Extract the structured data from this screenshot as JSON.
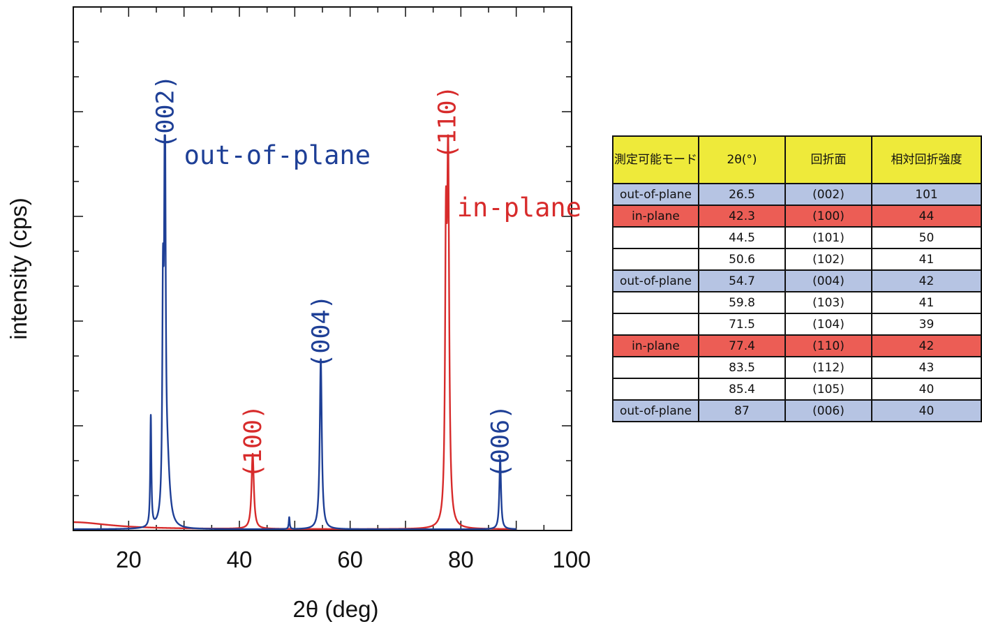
{
  "chart_data": {
    "type": "line",
    "xlabel": "2θ (deg)",
    "ylabel": "intensity (cps)",
    "xlim": [
      10,
      100
    ],
    "ylim": [
      0,
      100
    ],
    "xticks": [
      20,
      40,
      60,
      80,
      100
    ],
    "grid": false,
    "series": [
      {
        "name": "out-of-plane",
        "color": "#1e3f96",
        "baseline": 0.3,
        "peaks": [
          {
            "x": 24.0,
            "h": 28,
            "w": 0.12
          },
          {
            "x": 26.2,
            "h": 52,
            "w": 0.15
          },
          {
            "x": 26.55,
            "h": 100,
            "w": 0.15
          },
          {
            "x": 27.0,
            "h": 14,
            "w": 0.5
          },
          {
            "x": 49.0,
            "h": 3,
            "w": 0.1
          },
          {
            "x": 54.7,
            "h": 43,
            "w": 0.22
          },
          {
            "x": 87.1,
            "h": 18,
            "w": 0.18
          }
        ],
        "x_end": 90
      },
      {
        "name": "in-plane",
        "color": "#d72b2b",
        "baseline": 0.3,
        "peaks": [
          {
            "x": 10.0,
            "h": 1.8,
            "w": 8
          },
          {
            "x": 42.4,
            "h": 19,
            "w": 0.25
          },
          {
            "x": 77.3,
            "h": 65,
            "w": 0.18
          },
          {
            "x": 77.7,
            "h": 90,
            "w": 0.22
          }
        ],
        "x_end": 90
      }
    ],
    "annotations": [
      {
        "text": "(002)",
        "x": 26.55,
        "y_frac": 0.8,
        "color": "#1e3f96",
        "rotate": true
      },
      {
        "text": "(100)",
        "x": 42.4,
        "y_frac": 0.17,
        "color": "#d72b2b",
        "rotate": true
      },
      {
        "text": "(004)",
        "x": 54.7,
        "y_frac": 0.38,
        "color": "#1e3f96",
        "rotate": true
      },
      {
        "text": "(110)",
        "x": 77.5,
        "y_frac": 0.78,
        "color": "#d72b2b",
        "rotate": true
      },
      {
        "text": "(006)",
        "x": 87.1,
        "y_frac": 0.17,
        "color": "#1e3f96",
        "rotate": true
      },
      {
        "text": "out-of-plane",
        "x": 30,
        "y_frac": 0.7,
        "color": "#1e3f96",
        "rotate": false
      },
      {
        "text": "in-plane",
        "x": 79.3,
        "y_frac": 0.6,
        "color": "#d72b2b",
        "rotate": false
      }
    ]
  },
  "table": {
    "header": [
      "測定可能モード",
      "2θ(°)",
      "回折面",
      "相対回折強度"
    ],
    "rows": [
      {
        "mode": "out-of-plane",
        "angle": "26.5",
        "plane": "(002)",
        "intensity": "101",
        "kind": "out"
      },
      {
        "mode": "in-plane",
        "angle": "42.3",
        "plane": "(100)",
        "intensity": "44",
        "kind": "in"
      },
      {
        "mode": "",
        "angle": "44.5",
        "plane": "(101)",
        "intensity": "50",
        "kind": "none"
      },
      {
        "mode": "",
        "angle": "50.6",
        "plane": "(102)",
        "intensity": "41",
        "kind": "none"
      },
      {
        "mode": "out-of-plane",
        "angle": "54.7",
        "plane": "(004)",
        "intensity": "42",
        "kind": "out"
      },
      {
        "mode": "",
        "angle": "59.8",
        "plane": "(103)",
        "intensity": "41",
        "kind": "none"
      },
      {
        "mode": "",
        "angle": "71.5",
        "plane": "(104)",
        "intensity": "39",
        "kind": "none"
      },
      {
        "mode": "in-plane",
        "angle": "77.4",
        "plane": "(110)",
        "intensity": "42",
        "kind": "in"
      },
      {
        "mode": "",
        "angle": "83.5",
        "plane": "(112)",
        "intensity": "43",
        "kind": "none"
      },
      {
        "mode": "",
        "angle": "85.4",
        "plane": "(105)",
        "intensity": "40",
        "kind": "none"
      },
      {
        "mode": "out-of-plane",
        "angle": "87",
        "plane": "(006)",
        "intensity": "40",
        "kind": "out"
      }
    ]
  }
}
